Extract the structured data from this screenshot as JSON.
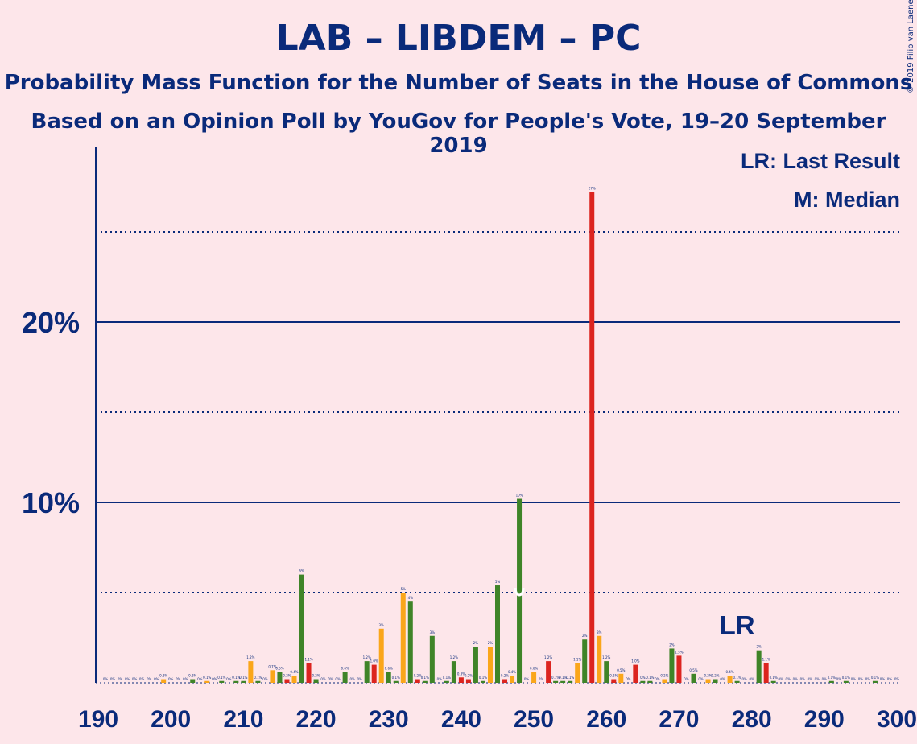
{
  "title": "LAB – LIBDEM – PC",
  "subtitle1": "Probability Mass Function for the Number of Seats in the House of Commons",
  "subtitle2": "Based on an Opinion Poll by YouGov for People's Vote, 19–20 September 2019",
  "copyright": "© 2019 Filip van Laenen",
  "legend": {
    "lr": "LR: Last Result",
    "median": "M: Median"
  },
  "markers": {
    "lr_label": "LR",
    "median_label": "M"
  },
  "colors": {
    "background": "#fde6ea",
    "text": "#0a2a7a",
    "axis": "#0a2a7a",
    "lab": "#dc241f",
    "libdem": "#faa61a",
    "pc": "#3f8428"
  },
  "chart_data": {
    "type": "bar",
    "xlim": [
      190,
      300
    ],
    "ylim": [
      0,
      29
    ],
    "x_ticks": [
      "190",
      "200",
      "210",
      "220",
      "230",
      "240",
      "250",
      "260",
      "270",
      "280",
      "290",
      "300"
    ],
    "y_ticks": [
      {
        "value": 10,
        "label": "10%"
      },
      {
        "value": 20,
        "label": "20%"
      }
    ],
    "y_gridlines_dotted": [
      5,
      15,
      25
    ],
    "y_gridlines_solid": [
      10,
      20
    ],
    "last_result": 278,
    "median": 248,
    "bars": [
      {
        "seat": 191,
        "value": 0.0,
        "label": "0%",
        "color": "pc"
      },
      {
        "seat": 192,
        "value": 0.0,
        "label": "0%",
        "color": "pc"
      },
      {
        "seat": 193,
        "value": 0.0,
        "label": "0%",
        "color": "pc"
      },
      {
        "seat": 194,
        "value": 0.0,
        "label": "0%",
        "color": "pc"
      },
      {
        "seat": 195,
        "value": 0.0,
        "label": "0%",
        "color": "pc"
      },
      {
        "seat": 196,
        "value": 0.0,
        "label": "0%",
        "color": "pc"
      },
      {
        "seat": 197,
        "value": 0.0,
        "label": "0%",
        "color": "pc"
      },
      {
        "seat": 198,
        "value": 0.0,
        "label": "0%",
        "color": "pc"
      },
      {
        "seat": 199,
        "value": 0.2,
        "label": "0.2%",
        "color": "libdem"
      },
      {
        "seat": 200,
        "value": 0.0,
        "label": "0%",
        "color": "pc"
      },
      {
        "seat": 201,
        "value": 0.0,
        "label": "0%",
        "color": "pc"
      },
      {
        "seat": 202,
        "value": 0.0,
        "label": "0%",
        "color": "pc"
      },
      {
        "seat": 203,
        "value": 0.2,
        "label": "0.2%",
        "color": "pc"
      },
      {
        "seat": 204,
        "value": 0.0,
        "label": "0%",
        "color": "pc"
      },
      {
        "seat": 205,
        "value": 0.1,
        "label": "0.1%",
        "color": "libdem"
      },
      {
        "seat": 206,
        "value": 0.0,
        "label": "0%",
        "color": "pc"
      },
      {
        "seat": 207,
        "value": 0.1,
        "label": "0.1%",
        "color": "pc"
      },
      {
        "seat": 208,
        "value": 0.0,
        "label": "0%",
        "color": "pc"
      },
      {
        "seat": 209,
        "value": 0.1,
        "label": "0.1%",
        "color": "pc"
      },
      {
        "seat": 210,
        "value": 0.1,
        "label": "0.1%",
        "color": "pc"
      },
      {
        "seat": 211,
        "value": 1.2,
        "label": "1.2%",
        "color": "libdem"
      },
      {
        "seat": 212,
        "value": 0.1,
        "label": "0.1%",
        "color": "pc"
      },
      {
        "seat": 213,
        "value": 0.0,
        "label": "0%",
        "color": "pc"
      },
      {
        "seat": 214,
        "value": 0.7,
        "label": "0.7%",
        "color": "libdem"
      },
      {
        "seat": 215,
        "value": 0.6,
        "label": "0.6%",
        "color": "pc"
      },
      {
        "seat": 216,
        "value": 0.2,
        "label": "0.2%",
        "color": "lab"
      },
      {
        "seat": 217,
        "value": 0.4,
        "label": "0.4%",
        "color": "libdem"
      },
      {
        "seat": 218,
        "value": 6.0,
        "label": "6%",
        "color": "pc"
      },
      {
        "seat": 219,
        "value": 1.1,
        "label": "1.1%",
        "color": "lab"
      },
      {
        "seat": 220,
        "value": 0.2,
        "label": "0.2%",
        "color": "pc"
      },
      {
        "seat": 221,
        "value": 0.0,
        "label": "0%",
        "color": "pc"
      },
      {
        "seat": 222,
        "value": 0.0,
        "label": "0%",
        "color": "pc"
      },
      {
        "seat": 223,
        "value": 0.0,
        "label": "0%",
        "color": "pc"
      },
      {
        "seat": 224,
        "value": 0.6,
        "label": "0.6%",
        "color": "pc"
      },
      {
        "seat": 225,
        "value": 0.0,
        "label": "0%",
        "color": "pc"
      },
      {
        "seat": 226,
        "value": 0.0,
        "label": "0%",
        "color": "pc"
      },
      {
        "seat": 227,
        "value": 1.2,
        "label": "1.2%",
        "color": "pc"
      },
      {
        "seat": 228,
        "value": 1.0,
        "label": "1.0%",
        "color": "lab"
      },
      {
        "seat": 229,
        "value": 3.0,
        "label": "3%",
        "color": "libdem"
      },
      {
        "seat": 230,
        "value": 0.6,
        "label": "0.6%",
        "color": "pc"
      },
      {
        "seat": 231,
        "value": 0.1,
        "label": "0.1%",
        "color": "pc"
      },
      {
        "seat": 232,
        "value": 5.0,
        "label": "5%",
        "color": "libdem"
      },
      {
        "seat": 233,
        "value": 4.5,
        "label": "4%",
        "color": "pc"
      },
      {
        "seat": 234,
        "value": 0.2,
        "label": "0.2%",
        "color": "lab"
      },
      {
        "seat": 235,
        "value": 0.1,
        "label": "0.1%",
        "color": "pc"
      },
      {
        "seat": 236,
        "value": 2.6,
        "label": "3%",
        "color": "pc"
      },
      {
        "seat": 237,
        "value": 0.0,
        "label": "0%",
        "color": "pc"
      },
      {
        "seat": 238,
        "value": 0.1,
        "label": "0.1%",
        "color": "pc"
      },
      {
        "seat": 239,
        "value": 1.2,
        "label": "1.2%",
        "color": "pc"
      },
      {
        "seat": 240,
        "value": 0.3,
        "label": "0.3%",
        "color": "lab"
      },
      {
        "seat": 241,
        "value": 0.2,
        "label": "0.2%",
        "color": "lab"
      },
      {
        "seat": 242,
        "value": 2.0,
        "label": "2%",
        "color": "pc"
      },
      {
        "seat": 243,
        "value": 0.1,
        "label": "0.1%",
        "color": "pc"
      },
      {
        "seat": 244,
        "value": 2.0,
        "label": "2%",
        "color": "libdem"
      },
      {
        "seat": 245,
        "value": 5.4,
        "label": "5%",
        "color": "pc"
      },
      {
        "seat": 246,
        "value": 0.2,
        "label": "0.2%",
        "color": "lab"
      },
      {
        "seat": 247,
        "value": 0.4,
        "label": "0.4%",
        "color": "libdem"
      },
      {
        "seat": 248,
        "value": 10.2,
        "label": "10%",
        "color": "pc"
      },
      {
        "seat": 249,
        "value": 0.0,
        "label": "0%",
        "color": "pc"
      },
      {
        "seat": 250,
        "value": 0.6,
        "label": "0.6%",
        "color": "libdem"
      },
      {
        "seat": 251,
        "value": 0.0,
        "label": "0%",
        "color": "pc"
      },
      {
        "seat": 252,
        "value": 1.2,
        "label": "1.2%",
        "color": "lab"
      },
      {
        "seat": 253,
        "value": 0.1,
        "label": "0.1%",
        "color": "pc"
      },
      {
        "seat": 254,
        "value": 0.1,
        "label": "0.1%",
        "color": "pc"
      },
      {
        "seat": 255,
        "value": 0.1,
        "label": "0.1%",
        "color": "pc"
      },
      {
        "seat": 256,
        "value": 1.1,
        "label": "1.1%",
        "color": "libdem"
      },
      {
        "seat": 257,
        "value": 2.4,
        "label": "2%",
        "color": "pc"
      },
      {
        "seat": 258,
        "value": 27.2,
        "label": "27%",
        "color": "lab"
      },
      {
        "seat": 259,
        "value": 2.6,
        "label": "3%",
        "color": "libdem"
      },
      {
        "seat": 260,
        "value": 1.2,
        "label": "1.2%",
        "color": "pc"
      },
      {
        "seat": 261,
        "value": 0.2,
        "label": "0.2%",
        "color": "lab"
      },
      {
        "seat": 262,
        "value": 0.5,
        "label": "0.5%",
        "color": "libdem"
      },
      {
        "seat": 263,
        "value": 0.0,
        "label": "0%",
        "color": "pc"
      },
      {
        "seat": 264,
        "value": 1.0,
        "label": "1.0%",
        "color": "lab"
      },
      {
        "seat": 265,
        "value": 0.1,
        "label": "0%",
        "color": "pc"
      },
      {
        "seat": 266,
        "value": 0.1,
        "label": "0.1%",
        "color": "pc"
      },
      {
        "seat": 267,
        "value": 0.0,
        "label": "0%",
        "color": "pc"
      },
      {
        "seat": 268,
        "value": 0.2,
        "label": "0.2%",
        "color": "libdem"
      },
      {
        "seat": 269,
        "value": 1.9,
        "label": "2%",
        "color": "pc"
      },
      {
        "seat": 270,
        "value": 1.5,
        "label": "1.5%",
        "color": "lab"
      },
      {
        "seat": 271,
        "value": 0.0,
        "label": "0%",
        "color": "pc"
      },
      {
        "seat": 272,
        "value": 0.5,
        "label": "0.5%",
        "color": "pc"
      },
      {
        "seat": 273,
        "value": 0.0,
        "label": "0%",
        "color": "pc"
      },
      {
        "seat": 274,
        "value": 0.2,
        "label": "0.2%",
        "color": "libdem"
      },
      {
        "seat": 275,
        "value": 0.2,
        "label": "0.2%",
        "color": "pc"
      },
      {
        "seat": 276,
        "value": 0.0,
        "label": "0%",
        "color": "pc"
      },
      {
        "seat": 277,
        "value": 0.4,
        "label": "0.4%",
        "color": "libdem"
      },
      {
        "seat": 278,
        "value": 0.1,
        "label": "0.1%",
        "color": "pc"
      },
      {
        "seat": 279,
        "value": 0.0,
        "label": "0%",
        "color": "pc"
      },
      {
        "seat": 280,
        "value": 0.0,
        "label": "0%",
        "color": "pc"
      },
      {
        "seat": 281,
        "value": 1.8,
        "label": "2%",
        "color": "pc"
      },
      {
        "seat": 282,
        "value": 1.1,
        "label": "1.1%",
        "color": "lab"
      },
      {
        "seat": 283,
        "value": 0.1,
        "label": "0.1%",
        "color": "pc"
      },
      {
        "seat": 284,
        "value": 0.0,
        "label": "0%",
        "color": "pc"
      },
      {
        "seat": 285,
        "value": 0.0,
        "label": "0%",
        "color": "pc"
      },
      {
        "seat": 286,
        "value": 0.0,
        "label": "0%",
        "color": "pc"
      },
      {
        "seat": 287,
        "value": 0.0,
        "label": "0%",
        "color": "pc"
      },
      {
        "seat": 288,
        "value": 0.0,
        "label": "0%",
        "color": "pc"
      },
      {
        "seat": 289,
        "value": 0.0,
        "label": "0%",
        "color": "pc"
      },
      {
        "seat": 290,
        "value": 0.0,
        "label": "0%",
        "color": "pc"
      },
      {
        "seat": 291,
        "value": 0.1,
        "label": "0.1%",
        "color": "pc"
      },
      {
        "seat": 292,
        "value": 0.0,
        "label": "0%",
        "color": "pc"
      },
      {
        "seat": 293,
        "value": 0.1,
        "label": "0.1%",
        "color": "pc"
      },
      {
        "seat": 294,
        "value": 0.0,
        "label": "0%",
        "color": "pc"
      },
      {
        "seat": 295,
        "value": 0.0,
        "label": "0%",
        "color": "pc"
      },
      {
        "seat": 296,
        "value": 0.0,
        "label": "0%",
        "color": "pc"
      },
      {
        "seat": 297,
        "value": 0.1,
        "label": "0.1%",
        "color": "pc"
      },
      {
        "seat": 298,
        "value": 0.0,
        "label": "0%",
        "color": "pc"
      },
      {
        "seat": 299,
        "value": 0.0,
        "label": "0%",
        "color": "pc"
      },
      {
        "seat": 300,
        "value": 0.0,
        "label": "0%",
        "color": "pc"
      }
    ]
  }
}
